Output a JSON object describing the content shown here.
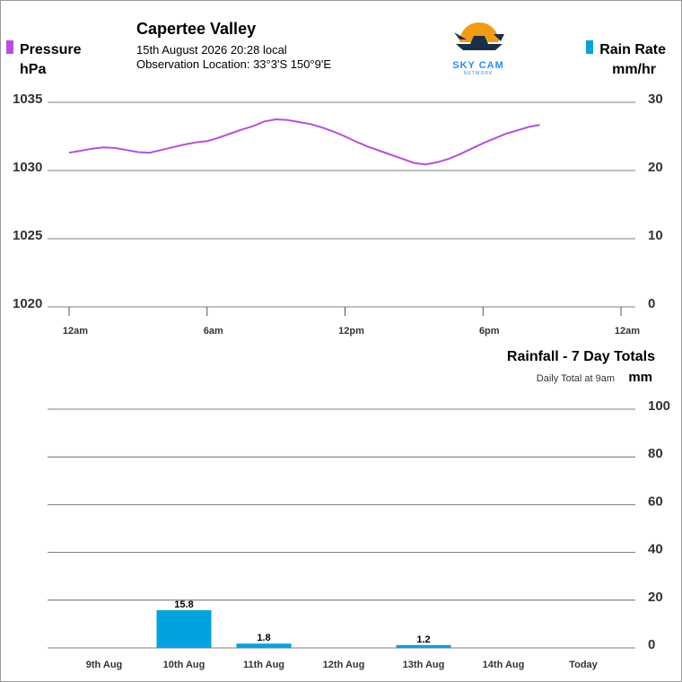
{
  "header": {
    "location": "Capertee Valley",
    "datetime": "15th August 2026  20:28 local",
    "observation": "Observation Location: 33°3'S 150°9'E",
    "logo_text": "SKY CAM",
    "logo_subtext": "NETWORK"
  },
  "colors": {
    "pressure": "#b84ee0",
    "rain": "#00a3e0",
    "grid": "#555555",
    "text": "#000000",
    "axis_text": "#333333"
  },
  "chart_data": [
    {
      "type": "line",
      "legend_left": "Pressure",
      "unit_left": "hPa",
      "legend_right": "Rain Rate",
      "unit_right": "mm/hr",
      "x_ticks": [
        "12am",
        "6am",
        "12pm",
        "6pm",
        "12am"
      ],
      "x_hours": [
        0,
        6,
        12,
        18,
        24
      ],
      "y_left_ticks": [
        1035,
        1030,
        1025,
        1020
      ],
      "y_right_ticks": [
        30,
        20,
        10,
        0
      ],
      "ylim": [
        1020,
        1035
      ],
      "y_right_lim": [
        0,
        30
      ],
      "series": [
        {
          "name": "Pressure",
          "x": [
            0,
            0.5,
            1,
            1.5,
            2,
            2.5,
            3,
            3.5,
            4,
            4.5,
            5,
            5.5,
            6,
            6.5,
            7,
            7.5,
            8,
            8.5,
            9,
            9.5,
            10,
            10.5,
            11,
            11.5,
            12,
            12.5,
            13,
            13.5,
            14,
            14.5,
            15,
            15.5,
            16,
            16.5,
            17,
            17.5,
            18,
            18.5,
            19,
            19.5,
            20,
            20.47
          ],
          "y": [
            1031.3,
            1031.45,
            1031.6,
            1031.7,
            1031.65,
            1031.5,
            1031.35,
            1031.3,
            1031.5,
            1031.7,
            1031.9,
            1032.05,
            1032.15,
            1032.4,
            1032.7,
            1033.0,
            1033.25,
            1033.6,
            1033.75,
            1033.7,
            1033.55,
            1033.4,
            1033.15,
            1032.85,
            1032.5,
            1032.1,
            1031.75,
            1031.45,
            1031.15,
            1030.85,
            1030.55,
            1030.45,
            1030.6,
            1030.85,
            1031.2,
            1031.6,
            1032.0,
            1032.35,
            1032.7,
            1032.95,
            1033.2,
            1033.35
          ]
        }
      ]
    },
    {
      "type": "bar",
      "title": "Rainfall - 7 Day Totals",
      "subtitle": "Daily Total at 9am",
      "unit": "mm",
      "categories": [
        "9th Aug",
        "10th Aug",
        "11th Aug",
        "12th Aug",
        "13th Aug",
        "14th Aug",
        "Today"
      ],
      "values": [
        0,
        15.8,
        1.8,
        0,
        1.2,
        0,
        0
      ],
      "value_labels": [
        "",
        "15.8",
        "1.8",
        "",
        "1.2",
        "",
        ""
      ],
      "y_ticks": [
        100,
        80,
        60,
        40,
        20,
        0
      ],
      "ylim": [
        0,
        100
      ]
    }
  ]
}
